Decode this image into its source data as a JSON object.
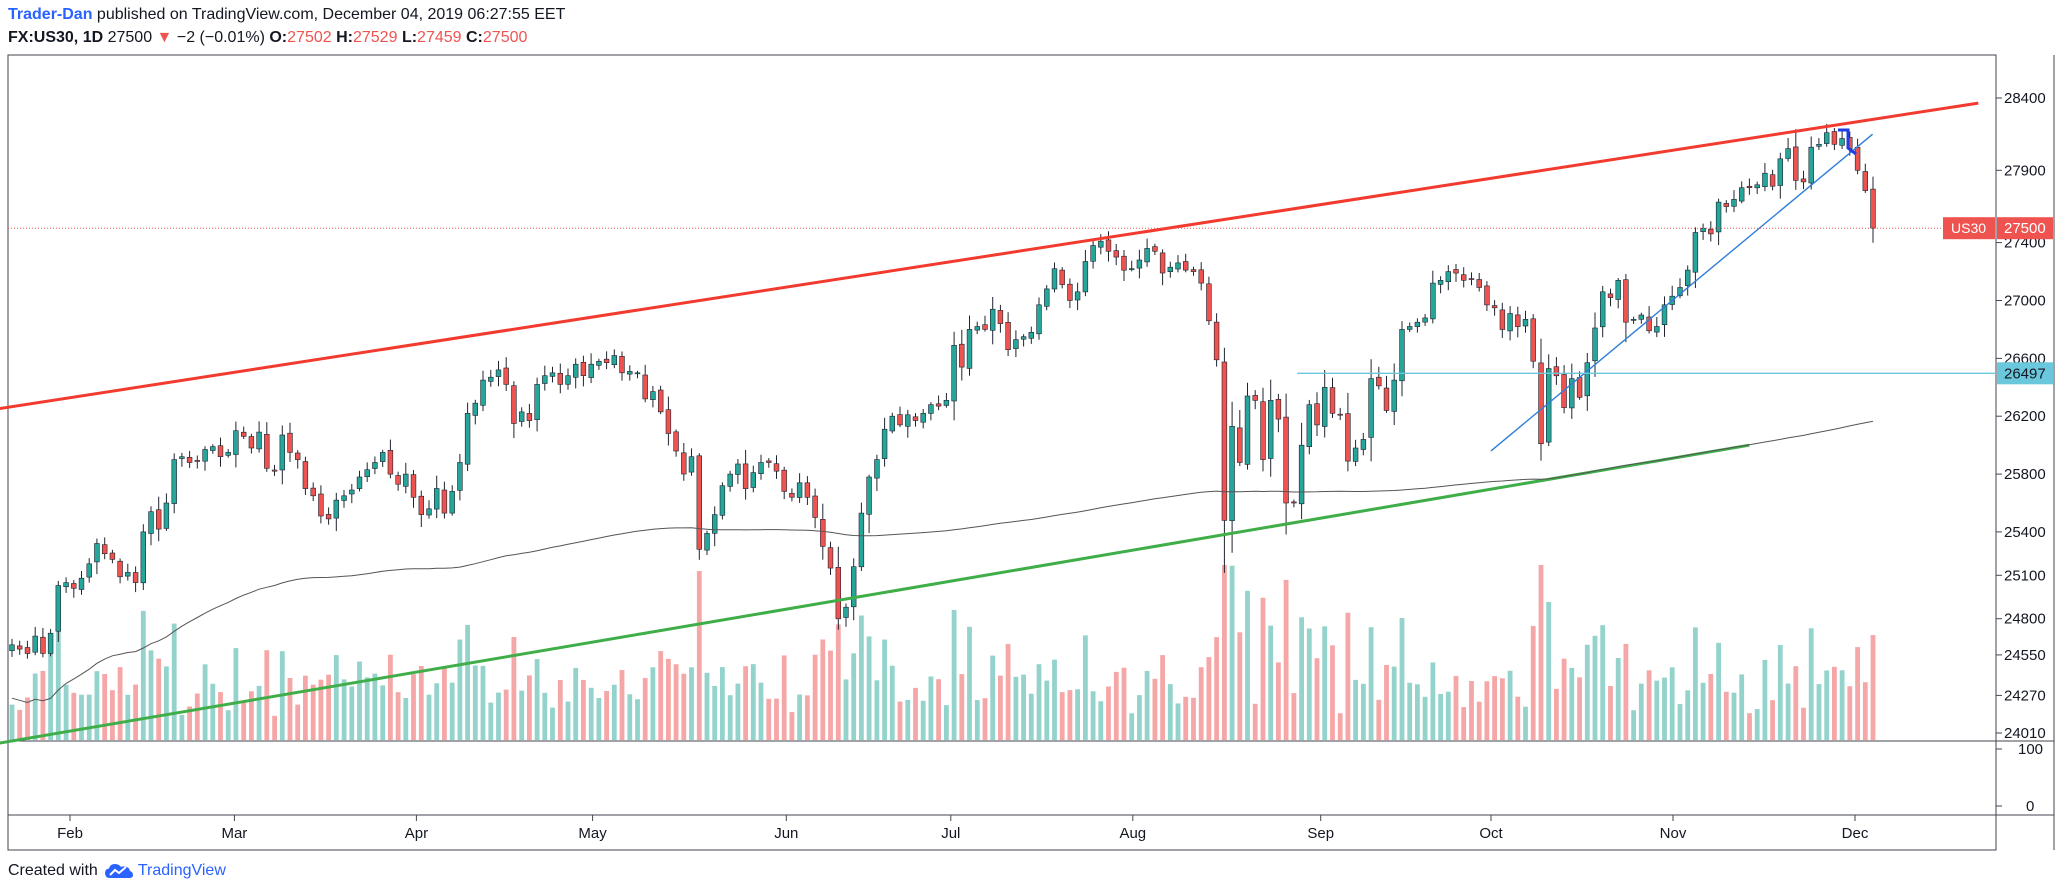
{
  "header": {
    "author": "Trader-Dan",
    "published_text": " published on TradingView.com, December 04, 2019 06:27:55 EET",
    "symbol": "FX:US30, 1D",
    "last": "27500",
    "down_arrow": "▼",
    "change": "−2 (−0.01%)",
    "o_label": "O:",
    "o_value": "27502",
    "h_label": "H:",
    "h_value": "27529",
    "l_label": "L:",
    "l_value": "27459",
    "c_label": "C:",
    "c_value": "27500"
  },
  "footer": {
    "created_text": "Created with",
    "brand": "TradingView",
    "icon": "tradingview-cloud-icon"
  },
  "colors": {
    "up": "#26a69a",
    "down": "#ef5350",
    "volume_up": "#93d3cc",
    "volume_down": "#f5a6a6",
    "channel_upper": "#f23a2e",
    "channel_lower": "#3fae49",
    "trend": "#2f7ed8",
    "ma": "#555555",
    "level": "#6bc7dc",
    "arrow": "#1f3de0"
  },
  "chart_data": {
    "type": "candlestick",
    "symbol": "US30",
    "interval": "1D",
    "price_axis_ticks": [
      28400,
      27900,
      27400,
      27000,
      26600,
      26200,
      25800,
      25400,
      25100,
      24800,
      24550,
      24270,
      24010
    ],
    "oscillator_axis_ticks": [
      100,
      0
    ],
    "x_month_labels": [
      {
        "label": "Feb",
        "date": "2019-02-01"
      },
      {
        "label": "Mar",
        "date": "2019-03-01"
      },
      {
        "label": "Apr",
        "date": "2019-04-01"
      },
      {
        "label": "May",
        "date": "2019-05-01"
      },
      {
        "label": "Jun",
        "date": "2019-06-03"
      },
      {
        "label": "Jul",
        "date": "2019-07-01"
      },
      {
        "label": "Aug",
        "date": "2019-08-01"
      },
      {
        "label": "Sep",
        "date": "2019-09-02"
      },
      {
        "label": "Oct",
        "date": "2019-10-01"
      },
      {
        "label": "Nov",
        "date": "2019-11-01"
      },
      {
        "label": "Dec",
        "date": "2019-12-02"
      }
    ],
    "price_labels": [
      {
        "symbol": "US30",
        "value": "27500",
        "color": "#ef5350"
      },
      {
        "value": "26497",
        "color": "#6bc7dc"
      }
    ],
    "closes": [
      24620,
      24590,
      24560,
      24680,
      24560,
      24700,
      25030,
      25050,
      25010,
      25080,
      25180,
      25320,
      25250,
      25210,
      25090,
      25120,
      25050,
      25400,
      25540,
      25420,
      25600,
      25900,
      25920,
      25880,
      25890,
      25970,
      25990,
      25920,
      25950,
      26100,
      26060,
      25980,
      26090,
      25840,
      25820,
      26070,
      25950,
      25900,
      25700,
      25650,
      25510,
      25490,
      25620,
      25650,
      25690,
      25780,
      25830,
      25880,
      25950,
      25800,
      25730,
      25800,
      25640,
      25520,
      25560,
      25700,
      25530,
      25680,
      25880,
      26220,
      26290,
      26450,
      26470,
      26520,
      26420,
      26150,
      26230,
      26170,
      26420,
      26480,
      26500,
      26420,
      26480,
      26560,
      26480,
      26560,
      26580,
      26570,
      26620,
      26500,
      26510,
      26500,
      26320,
      26370,
      26230,
      26080,
      25960,
      25800,
      25920,
      25280,
      25390,
      25520,
      25720,
      25800,
      25870,
      25700,
      25810,
      25880,
      25880,
      25820,
      25680,
      25640,
      25740,
      25640,
      25500,
      25300,
      25150,
      24800,
      24880,
      25160,
      25530,
      25780,
      25900,
      26110,
      26200,
      26140,
      26210,
      26170,
      26220,
      26280,
      26270,
      26310,
      26690,
      26540,
      26800,
      26820,
      26800,
      26940,
      26840,
      26660,
      26730,
      26750,
      26780,
      26970,
      27080,
      27220,
      27110,
      27000,
      27060,
      27270,
      27380,
      27410,
      27340,
      27300,
      27210,
      27220,
      27280,
      27360,
      27340,
      27190,
      27230,
      27260,
      27210,
      27200,
      27120,
      26860,
      26590,
      25480,
      26130,
      25880,
      26340,
      26310,
      25900,
      26310,
      26180,
      25600,
      25600,
      26000,
      26280,
      26140,
      26400,
      26220,
      26210,
      25890,
      25980,
      26040,
      26460,
      26410,
      26240,
      26450,
      26800,
      26820,
      26850,
      26880,
      27120,
      27140,
      27200,
      27190,
      27140,
      27150,
      27090,
      26970,
      26950,
      26800,
      26910,
      26820,
      26870,
      26580,
      26010,
      26530,
      26480,
      26260,
      26460,
      26330,
      26570,
      26810,
      27060,
      27020,
      27140,
      26850,
      26870,
      26900,
      26790,
      26820,
      26970,
      27030,
      27090,
      27210,
      27470,
      27500,
      27460,
      27680,
      27650,
      27700,
      27780,
      27780,
      27800,
      27880,
      27790,
      27980,
      28050,
      27830,
      27820,
      28060,
      28080,
      28160,
      28080,
      28120,
      28050,
      27900,
      27760,
      27500
    ],
    "annotations": [
      {
        "type": "trendline",
        "name": "upper channel",
        "from": {
          "date": "2019-01-02",
          "price": 26140
        },
        "to": {
          "date": "2019-12-23",
          "price": 28365
        }
      },
      {
        "type": "trendline",
        "name": "lower channel",
        "from": {
          "date": "2019-01-07",
          "price": 23850
        },
        "to": {
          "date": "2019-11-14",
          "price": 26000
        }
      },
      {
        "type": "trendline",
        "name": "rising support",
        "from": {
          "date": "2019-10-01",
          "price": 25960
        },
        "to": {
          "date": "2019-12-05",
          "price": 28150
        }
      },
      {
        "type": "horizontal",
        "name": "support level",
        "price": 26497,
        "from_date": "2019-08-29"
      },
      {
        "type": "horizontal",
        "name": "last price",
        "price": 27500
      },
      {
        "type": "moving-average",
        "name": "200-day MA",
        "period": 200
      }
    ]
  }
}
